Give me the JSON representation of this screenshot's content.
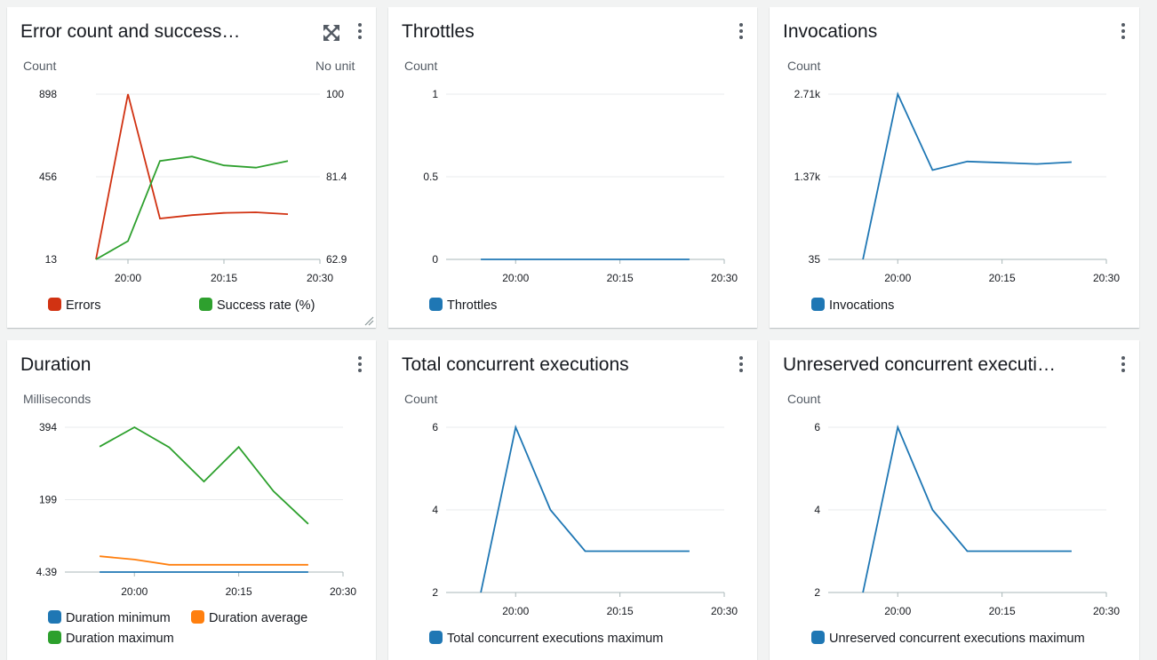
{
  "colors": {
    "errors": "#d13212",
    "success": "#2ea02e",
    "blue": "#1f77b4",
    "orange": "#ff7f0e",
    "green": "#2ca02c",
    "grid": "#e9ebed",
    "axis": "#aab7b8"
  },
  "widgets": {
    "errors": {
      "title": "Error count and success…",
      "unit_left": "Count",
      "unit_right": "No unit",
      "legend": [
        "Errors",
        "Success rate (%)"
      ]
    },
    "throttles": {
      "title": "Throttles",
      "unit": "Count",
      "legend": [
        "Throttles"
      ]
    },
    "invocations": {
      "title": "Invocations",
      "unit": "Count",
      "legend": [
        "Invocations"
      ]
    },
    "duration": {
      "title": "Duration",
      "unit": "Milliseconds",
      "legend": [
        "Duration minimum",
        "Duration average",
        "Duration maximum"
      ]
    },
    "total_concurrent": {
      "title": "Total concurrent executions",
      "unit": "Count",
      "legend": [
        "Total concurrent executions maximum"
      ]
    },
    "unreserved_concurrent": {
      "title": "Unreserved concurrent executi…",
      "unit": "Count",
      "legend": [
        "Unreserved concurrent executions maximum"
      ]
    }
  },
  "chart_data": [
    {
      "id": "errors",
      "type": "line",
      "x": [
        "19:55",
        "20:00",
        "20:05",
        "20:10",
        "20:15",
        "20:20",
        "20:25"
      ],
      "x_ticks": [
        "20:00",
        "20:15",
        "20:30"
      ],
      "xlim": [
        "19:55",
        "20:30"
      ],
      "y_ticks_left": [
        "13",
        "456",
        "898"
      ],
      "ylim_left": [
        13,
        898
      ],
      "y_ticks_right": [
        "62.9",
        "81.4",
        "100"
      ],
      "ylim_right": [
        62.9,
        100
      ],
      "series": [
        {
          "name": "Errors",
          "axis": "left",
          "color": "#d13212",
          "values": [
            13,
            898,
            232,
            250,
            262,
            265,
            255
          ]
        },
        {
          "name": "Success rate (%)",
          "axis": "right",
          "color": "#2ea02e",
          "values": [
            62.9,
            67,
            85,
            86,
            84,
            83.5,
            85
          ]
        }
      ]
    },
    {
      "id": "throttles",
      "type": "line",
      "x": [
        "19:55",
        "20:00",
        "20:05",
        "20:10",
        "20:15",
        "20:20",
        "20:25"
      ],
      "x_ticks": [
        "20:00",
        "20:15",
        "20:30"
      ],
      "xlim": [
        "19:50",
        "20:30"
      ],
      "y_ticks": [
        "0",
        "0.5",
        "1"
      ],
      "ylim": [
        0,
        1
      ],
      "series": [
        {
          "name": "Throttles",
          "color": "#1f77b4",
          "values": [
            0,
            0,
            0,
            0,
            0,
            0,
            0
          ]
        }
      ]
    },
    {
      "id": "invocations",
      "type": "line",
      "x": [
        "19:55",
        "20:00",
        "20:05",
        "20:10",
        "20:15",
        "20:20",
        "20:25"
      ],
      "x_ticks": [
        "20:00",
        "20:15",
        "20:30"
      ],
      "xlim": [
        "19:50",
        "20:30"
      ],
      "y_ticks": [
        "35",
        "1.37k",
        "2.71k"
      ],
      "ylim": [
        35,
        2710
      ],
      "series": [
        {
          "name": "Invocations",
          "color": "#1f77b4",
          "values": [
            35,
            2710,
            1480,
            1620,
            1600,
            1580,
            1610
          ]
        }
      ]
    },
    {
      "id": "duration",
      "type": "line",
      "x": [
        "19:55",
        "20:00",
        "20:05",
        "20:10",
        "20:15",
        "20:20",
        "20:25"
      ],
      "x_ticks": [
        "20:00",
        "20:15",
        "20:30"
      ],
      "xlim": [
        "19:50",
        "20:30"
      ],
      "y_ticks": [
        "4.39",
        "199",
        "394"
      ],
      "ylim": [
        4.39,
        394
      ],
      "series": [
        {
          "name": "Duration minimum",
          "color": "#1f77b4",
          "values": [
            4.39,
            4.39,
            4.39,
            4.39,
            4.39,
            4.39,
            4.39
          ]
        },
        {
          "name": "Duration average",
          "color": "#ff7f0e",
          "values": [
            47,
            38,
            24,
            24,
            24,
            24,
            24
          ]
        },
        {
          "name": "Duration maximum",
          "color": "#2ca02c",
          "values": [
            342,
            394,
            340,
            248,
            341,
            222,
            134
          ]
        }
      ]
    },
    {
      "id": "total_concurrent",
      "type": "line",
      "x": [
        "19:55",
        "20:00",
        "20:05",
        "20:10",
        "20:15",
        "20:20",
        "20:25"
      ],
      "x_ticks": [
        "20:00",
        "20:15",
        "20:30"
      ],
      "xlim": [
        "19:50",
        "20:30"
      ],
      "y_ticks": [
        "2",
        "4",
        "6"
      ],
      "ylim": [
        2,
        6
      ],
      "series": [
        {
          "name": "Total concurrent executions maximum",
          "color": "#1f77b4",
          "values": [
            2,
            6,
            4,
            3,
            3,
            3,
            3
          ]
        }
      ]
    },
    {
      "id": "unreserved_concurrent",
      "type": "line",
      "x": [
        "19:55",
        "20:00",
        "20:05",
        "20:10",
        "20:15",
        "20:20",
        "20:25"
      ],
      "x_ticks": [
        "20:00",
        "20:15",
        "20:30"
      ],
      "xlim": [
        "19:50",
        "20:30"
      ],
      "y_ticks": [
        "2",
        "4",
        "6"
      ],
      "ylim": [
        2,
        6
      ],
      "series": [
        {
          "name": "Unreserved concurrent executions maximum",
          "color": "#1f77b4",
          "values": [
            2,
            6,
            4,
            3,
            3,
            3,
            3
          ]
        }
      ]
    }
  ]
}
